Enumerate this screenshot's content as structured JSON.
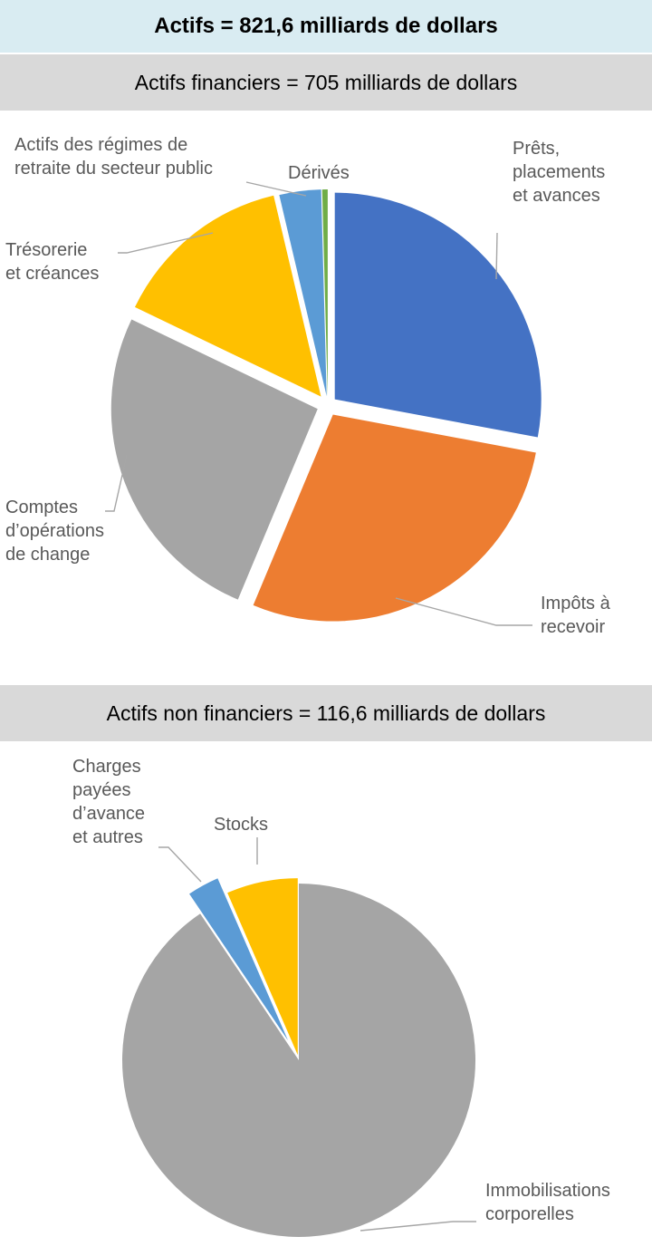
{
  "header": {
    "title": "Actifs = 821,6 milliards de dollars"
  },
  "chart_data": [
    {
      "type": "pie",
      "title": "Actifs financiers = 705 milliards de dollars",
      "unit": "milliards de dollars",
      "slices": [
        {
          "label": [
            "Prêts,",
            "placements",
            "et avances"
          ],
          "value": 197.0,
          "color": "#4472c4"
        },
        {
          "label": [
            "Impôts à",
            "recevoir"
          ],
          "value": 200.0,
          "color": "#ed7d31"
        },
        {
          "label": [
            "Comptes",
            "d’opérations",
            "de change"
          ],
          "value": 182.0,
          "color": "#a5a5a5"
        },
        {
          "label": [
            "Trésorerie",
            "et créances"
          ],
          "value": 100.0,
          "color": "#ffc000"
        },
        {
          "label": [
            "Actifs des régimes de",
            "retraite du secteur public"
          ],
          "value": 23.0,
          "color": "#5b9bd5"
        },
        {
          "label": [
            "Dérivés"
          ],
          "value": 3.0,
          "color": "#70ad47"
        }
      ]
    },
    {
      "type": "pie",
      "title": "Actifs non financiers = 116,6 milliards de dollars",
      "unit": "milliards de dollars",
      "slices": [
        {
          "label": [
            "Immobilisations",
            "corporelles"
          ],
          "value": 105.6,
          "color": "#a5a5a5"
        },
        {
          "label": [
            "Charges",
            "payées",
            "d’avance",
            "et autres"
          ],
          "value": 3.4,
          "color": "#5b9bd5"
        },
        {
          "label": [
            "Stocks"
          ],
          "value": 7.6,
          "color": "#ffc000"
        }
      ]
    }
  ]
}
